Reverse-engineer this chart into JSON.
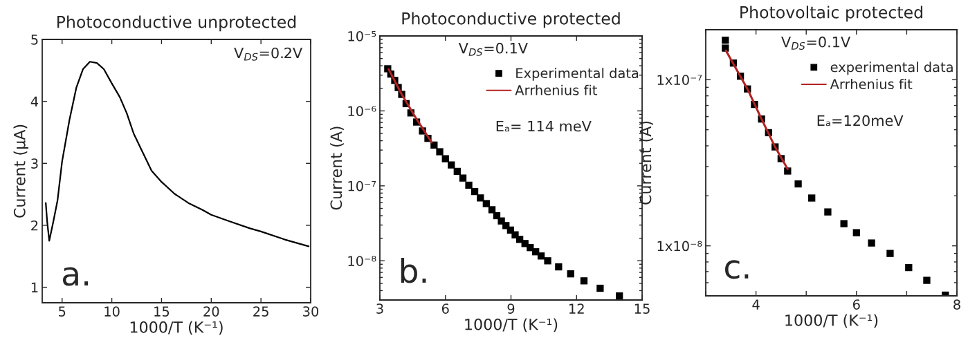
{
  "chart_data": [
    {
      "type": "line",
      "title": "Photoconductive unprotected",
      "xlabel": "1000/T (K⁻¹)",
      "ylabel": "Current (µA)",
      "xlim": [
        3,
        30
      ],
      "xticks": [
        5,
        10,
        15,
        20,
        25,
        30
      ],
      "ylim": [
        0.75,
        5
      ],
      "yticks": [
        1,
        2,
        3,
        4,
        5
      ],
      "grid": false,
      "legend": false,
      "series": [
        {
          "color": "#000000",
          "x": [
            3.36,
            3.5,
            3.71,
            4.12,
            4.54,
            5,
            5.74,
            6.43,
            7.1,
            7.8,
            8.5,
            9.2,
            10,
            10.8,
            11.5,
            12.2,
            13.1,
            14.0,
            15,
            16.3,
            17.7,
            19.1,
            20,
            21.9,
            23.9,
            25,
            27.4,
            29.8
          ],
          "values": [
            2.36,
            2.06,
            1.75,
            2.06,
            2.4,
            3.03,
            3.7,
            4.22,
            4.52,
            4.64,
            4.62,
            4.52,
            4.29,
            4.07,
            3.81,
            3.48,
            3.18,
            2.88,
            2.7,
            2.51,
            2.36,
            2.25,
            2.17,
            2.06,
            1.95,
            1.9,
            1.77,
            1.66
          ]
        }
      ],
      "annotations": [
        "V$_{DS}$=0.2V",
        "a."
      ]
    },
    {
      "type": "scatter",
      "title": "Photoconductive protected",
      "xlabel": "1000/T (K⁻¹)",
      "ylabel": "Current (A)",
      "log": "y",
      "xlim": [
        3,
        15
      ],
      "xticks": [
        3,
        6,
        9,
        12,
        15
      ],
      "ylim": [
        3e-09,
        1e-05
      ],
      "yticks": [
        {
          "value": 1e-08,
          "label": "10⁻⁸"
        },
        {
          "value": 1e-07,
          "label": "10⁻⁷"
        },
        {
          "value": 1e-06,
          "label": "10⁻⁶"
        },
        {
          "value": 1e-05,
          "label": "10⁻⁵"
        }
      ],
      "grid": false,
      "legend": "top right",
      "series": [
        {
          "name": "Experimental data",
          "color": "#000000",
          "marker": "square",
          "x": [
            3.36,
            3.5,
            3.68,
            3.84,
            4.0,
            4.2,
            4.42,
            4.68,
            4.95,
            5.2,
            5.48,
            5.74,
            6.0,
            6.27,
            6.54,
            6.8,
            7.07,
            7.34,
            7.6,
            7.87,
            8.13,
            8.35,
            8.56,
            8.77,
            8.98,
            9.19,
            9.4,
            9.64,
            9.88,
            10.13,
            10.38,
            10.68,
            11.18,
            11.73,
            12.34,
            13.08,
            13.96
          ],
          "values": [
            3.65e-06,
            3.1e-06,
            2.55e-06,
            2.05e-06,
            1.66e-06,
            1.25e-06,
            9.4e-07,
            7.1e-07,
            5.4e-07,
            4.3e-07,
            3.5e-07,
            2.85e-07,
            2.3e-07,
            1.9e-07,
            1.56e-07,
            1.27e-07,
            1.02e-07,
            8.4e-08,
            6.9e-08,
            5.8e-08,
            4.8e-08,
            4e-08,
            3.4e-08,
            2.95e-08,
            2.57e-08,
            2.22e-08,
            1.93e-08,
            1.7e-08,
            1.5e-08,
            1.32e-08,
            1.16e-08,
            1e-08,
            8.3e-09,
            6.7e-09,
            5.4e-09,
            4.3e-09,
            3.4e-09
          ]
        },
        {
          "name": "Arrhenius fit",
          "type": "line",
          "color": "#b22222",
          "x": [
            3.4,
            4.0,
            4.63,
            5.37
          ],
          "values": [
            3.6e-06,
            1.66e-06,
            8.2e-07,
            3.8e-07
          ]
        }
      ],
      "annotations": [
        "V$_{DS}$=0.1V",
        "Eₐ= 114 meV",
        "b."
      ]
    },
    {
      "type": "scatter",
      "title": "Photovoltaic protected",
      "xlabel": "1000/T (K⁻¹)",
      "ylabel": "Current (A)",
      "log": "y",
      "xlim": [
        3,
        8
      ],
      "xticks": [
        {
          "value": 3,
          "label": null
        },
        4,
        {
          "value": 5,
          "label": null
        },
        6,
        {
          "value": 7,
          "label": null
        },
        8
      ],
      "ylim": [
        5e-09,
        2e-07
      ],
      "yticks": [
        {
          "value": 1e-08,
          "label": "1x10⁻⁸"
        },
        {
          "value": 1e-07,
          "label": "1x10⁻⁷"
        }
      ],
      "grid": false,
      "legend": "top right",
      "series": [
        {
          "name": "experimental data",
          "color": "#000000",
          "marker": "square",
          "x": [
            3.39,
            3.39,
            3.55,
            3.69,
            3.83,
            3.97,
            4.11,
            4.25,
            4.38,
            4.5,
            4.63,
            4.84,
            5.11,
            5.43,
            5.75,
            6.0,
            6.3,
            6.67,
            7.04,
            7.4,
            7.77
          ],
          "values": [
            1.73e-07,
            1.55e-07,
            1.26e-07,
            1.05e-07,
            8.8e-08,
            7.1e-08,
            5.8e-08,
            4.8e-08,
            3.94e-08,
            3.35e-08,
            2.82e-08,
            2.36e-08,
            1.94e-08,
            1.6e-08,
            1.36e-08,
            1.2e-08,
            1.04e-08,
            9e-09,
            7.4e-09,
            6.2e-09,
            5.05e-09
          ]
        },
        {
          "name": "Arrhenius fit",
          "type": "line",
          "color": "#b22222",
          "x": [
            3.4,
            3.83,
            4.11,
            4.38,
            4.63
          ],
          "values": [
            1.5e-07,
            8.8e-08,
            5.8e-08,
            3.94e-08,
            2.9e-08
          ]
        }
      ],
      "annotations": [
        "V$_{DS}$=0.1V",
        "Eₐ=120meV",
        "c."
      ]
    }
  ]
}
